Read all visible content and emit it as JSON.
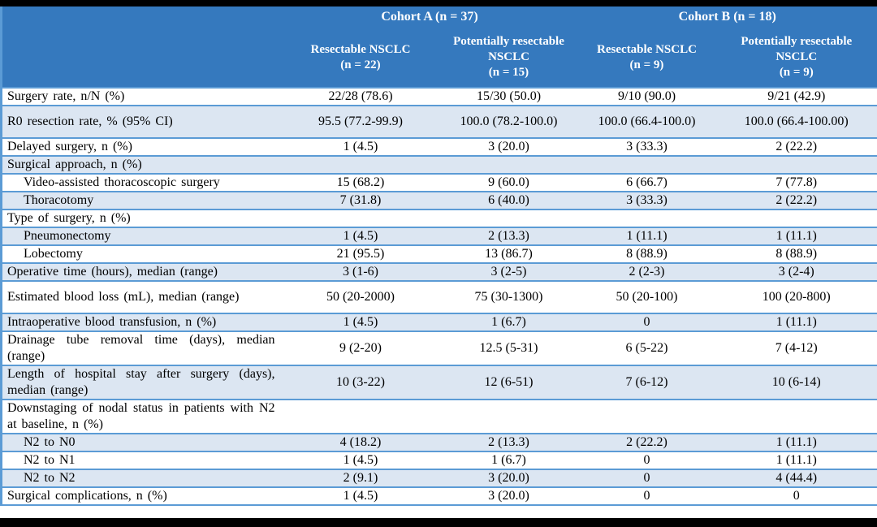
{
  "colors": {
    "header_bg": "#3579be",
    "band_row_bg": "#dce6f2",
    "row_border": "#5b9bd5",
    "outer_frame": "#000000",
    "header_text": "#ffffff"
  },
  "table": {
    "cohorts": [
      {
        "label": "Cohort A (n = 37)"
      },
      {
        "label": "Cohort B (n = 18)"
      }
    ],
    "columns": [
      {
        "name": "Resectable NSCLC",
        "n": "(n = 22)"
      },
      {
        "name": "Potentially resectable NSCLC",
        "n": "(n = 15)"
      },
      {
        "name": "Resectable NSCLC",
        "n": "(n = 9)"
      },
      {
        "name": "Potentially resectable NSCLC",
        "n": "(n = 9)"
      }
    ],
    "rows": [
      {
        "label": "Surgery rate, n/N (%)",
        "values": [
          "22/28 (78.6)",
          "15/30 (50.0)",
          "9/10 (90.0)",
          "9/21 (42.9)"
        ]
      },
      {
        "label": "R0 resection rate, % (95% CI)",
        "values": [
          "95.5 (77.2-99.9)",
          "100.0 (78.2-100.0)",
          "100.0 (66.4-100.0)",
          "100.0 (66.4-100.00)"
        ]
      },
      {
        "label": "Delayed surgery, n (%)",
        "values": [
          "1 (4.5)",
          "3 (20.0)",
          "3 (33.3)",
          "2 (22.2)"
        ]
      },
      {
        "label": "Surgical approach, n (%)",
        "values": [
          "",
          "",
          "",
          ""
        ]
      },
      {
        "label": "Video-assisted thoracoscopic surgery",
        "values": [
          "15 (68.2)",
          "9 (60.0)",
          "6 (66.7)",
          "7 (77.8)"
        ]
      },
      {
        "label": "Thoracotomy",
        "values": [
          "7 (31.8)",
          "6 (40.0)",
          "3 (33.3)",
          "2 (22.2)"
        ]
      },
      {
        "label": "Type of surgery, n (%)",
        "values": [
          "",
          "",
          "",
          ""
        ]
      },
      {
        "label": "Pneumonectomy",
        "values": [
          "1 (4.5)",
          "2 (13.3)",
          "1 (11.1)",
          "1 (11.1)"
        ]
      },
      {
        "label": "Lobectomy",
        "values": [
          "21 (95.5)",
          "13 (86.7)",
          "8 (88.9)",
          "8 (88.9)"
        ]
      },
      {
        "label": "Operative time (hours), median (range)",
        "values": [
          "3 (1-6)",
          "3 (2-5)",
          "2 (2-3)",
          "3 (2-4)"
        ]
      },
      {
        "label": "Estimated blood loss (mL), median (range)",
        "values": [
          "50 (20-2000)",
          "75 (30-1300)",
          "50 (20-100)",
          "100 (20-800)"
        ]
      },
      {
        "label": "Intraoperative blood transfusion, n (%)",
        "values": [
          "1 (4.5)",
          "1 (6.7)",
          "0",
          "1 (11.1)"
        ]
      },
      {
        "label": "Drainage tube removal time (days), median (range)",
        "values": [
          "9 (2-20)",
          "12.5 (5-31)",
          "6 (5-22)",
          "7 (4-12)"
        ]
      },
      {
        "label": "Length of hospital stay after surgery (days), median (range)",
        "values": [
          "10 (3-22)",
          "12 (6-51)",
          "7 (6-12)",
          "10 (6-14)"
        ]
      },
      {
        "label": "Downstaging of nodal status in patients with N2 at baseline, n (%)",
        "values": [
          "",
          "",
          "",
          ""
        ]
      },
      {
        "label": "N2 to N0",
        "values": [
          "4 (18.2)",
          "2 (13.3)",
          "2 (22.2)",
          "1 (11.1)"
        ]
      },
      {
        "label": "N2 to N1",
        "values": [
          "1 (4.5)",
          "1 (6.7)",
          "0",
          "1 (11.1)"
        ]
      },
      {
        "label": "N2 to N2",
        "values": [
          "2 (9.1)",
          "3 (20.0)",
          "0",
          "4 (44.4)"
        ]
      },
      {
        "label": "Surgical complications, n (%)",
        "values": [
          "1 (4.5)",
          "3 (20.0)",
          "0",
          "0"
        ]
      }
    ]
  }
}
